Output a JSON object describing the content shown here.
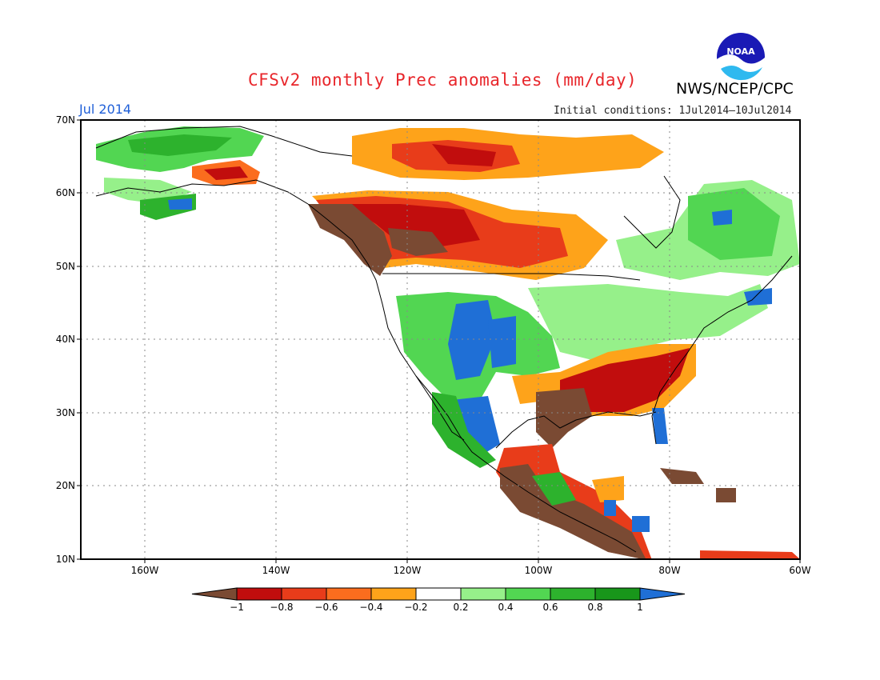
{
  "header": {
    "title": "CFSv2 monthly Prec anomalies (mm/day)",
    "agency": "NWS/NCEP/CPC",
    "month": "Jul 2014",
    "init_conditions": "Initial conditions: 1Jul2014—10Jul2014",
    "logo_text": "NOAA"
  },
  "map": {
    "lat_labels": [
      "70N",
      "60N",
      "50N",
      "40N",
      "30N",
      "20N",
      "10N"
    ],
    "lon_labels": [
      "160W",
      "140W",
      "120W",
      "100W",
      "80W",
      "60W"
    ],
    "lat_range": [
      10,
      70
    ],
    "lon_range": [
      -170,
      -60
    ]
  },
  "legend": {
    "boundaries": [
      "−1",
      "−0.8",
      "−0.6",
      "−0.4",
      "−0.2",
      "0.2",
      "0.4",
      "0.6",
      "0.8",
      "1"
    ],
    "colors": [
      "#7a4a33",
      "#c10d0d",
      "#e83c1a",
      "#fb6d1e",
      "#fea31a",
      "#ffffff",
      "#96f08a",
      "#52d652",
      "#2db22d",
      "#18961a",
      "#1f6fd6"
    ]
  },
  "anomaly_regions": [
    {
      "category": "wet",
      "color": "#2db22d",
      "description": "Alaska north slope"
    },
    {
      "category": "dry",
      "color": "#fb6d1e",
      "description": "Northwest Canada"
    },
    {
      "category": "very-dry",
      "color": "#7a4a33",
      "description": "Pacific Northwest coast"
    },
    {
      "category": "dry",
      "color": "#c10d0d",
      "description": "Southeast US"
    },
    {
      "category": "very-dry",
      "color": "#7a4a33",
      "description": "Mexico / Gulf coast"
    },
    {
      "category": "very-wet",
      "color": "#1f6fd6",
      "description": "US Southwest / Rockies"
    },
    {
      "category": "wet",
      "color": "#52d652",
      "description": "Great Lakes / Quebec"
    }
  ]
}
